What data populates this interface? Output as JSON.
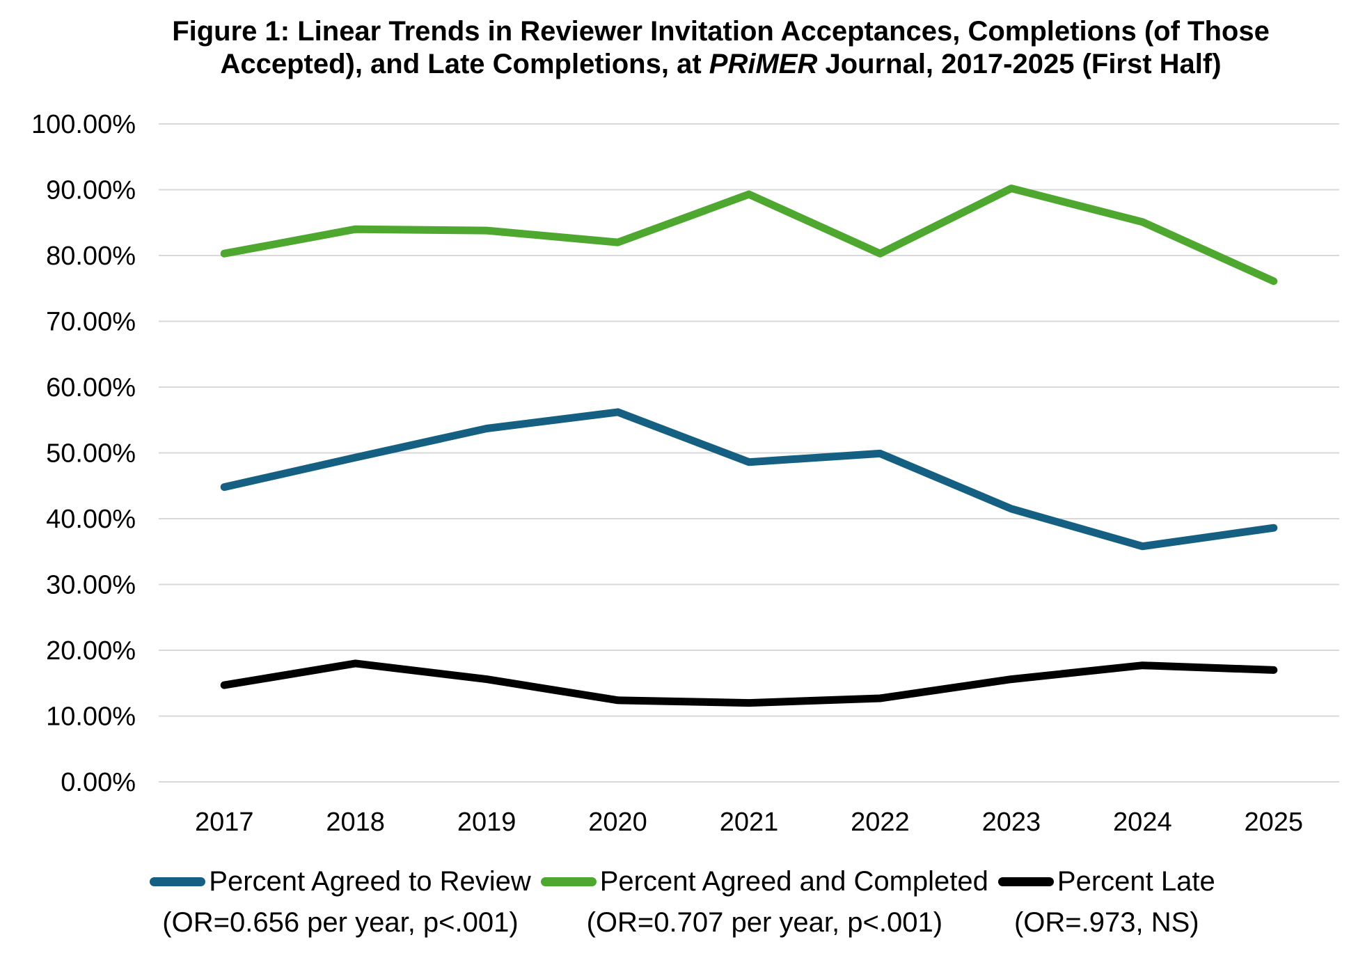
{
  "title": {
    "line1": "Figure 1: Linear Trends in Reviewer Invitation Acceptances, Completions (of Those",
    "line2_prefix": "Accepted), and Late Completions, at ",
    "line2_italic": "PRiMER",
    "line2_suffix": " Journal, 2017-2025 (First Half)"
  },
  "chart_data": {
    "type": "line",
    "x_labels": [
      "2017",
      "2018",
      "2019",
      "2020",
      "2021",
      "2022",
      "2023",
      "2024",
      "2025"
    ],
    "y_tick_labels": [
      "100.00%",
      "90.00%",
      "80.00%",
      "70.00%",
      "60.00%",
      "50.00%",
      "40.00%",
      "30.00%",
      "20.00%",
      "10.00%",
      "0.00%"
    ],
    "ylim": [
      0,
      100
    ],
    "ytick_step": 10,
    "grid": "horizontal",
    "legend_position": "bottom",
    "series": [
      {
        "name": "Percent Agreed to Review",
        "or_note": "(OR=0.656 per year, p<.001)",
        "color": "#156082",
        "values": [
          44.8,
          49.3,
          53.7,
          56.2,
          48.6,
          49.9,
          41.5,
          35.8,
          38.6
        ]
      },
      {
        "name": "Percent Agreed and Completed",
        "or_note": "(OR=0.707 per year, p<.001)",
        "color": "#4EA72E",
        "values": [
          80.3,
          84.0,
          83.8,
          82.0,
          89.3,
          80.3,
          90.2,
          85.1,
          76.1
        ]
      },
      {
        "name": "Percent Late",
        "or_note": "(OR=.973, NS)",
        "color": "#000000",
        "values": [
          14.7,
          18.0,
          15.6,
          12.4,
          12.0,
          12.7,
          15.6,
          17.7,
          17.0
        ]
      }
    ]
  }
}
